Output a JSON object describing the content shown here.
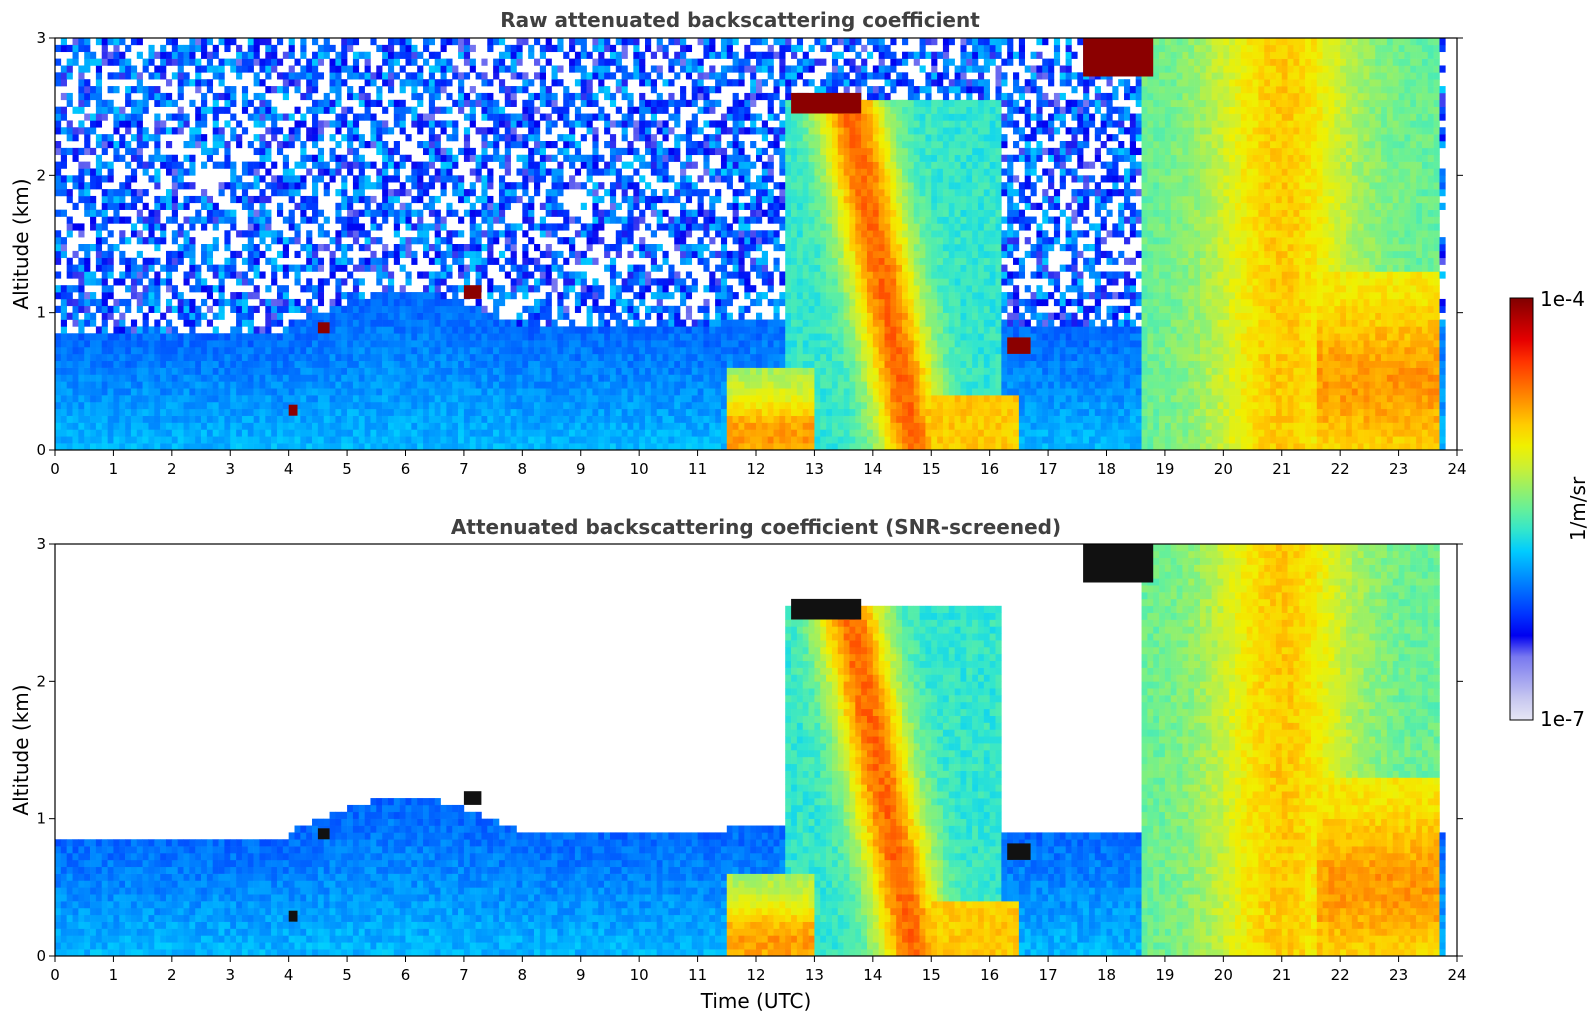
{
  "chart_data": [
    {
      "type": "heatmap",
      "title": "Raw attenuated backscattering coefficient",
      "xlabel": "",
      "ylabel": "Altitude (km)",
      "xlim": [
        0,
        24
      ],
      "ylim": [
        0,
        3
      ],
      "xticks": [
        "0",
        "1",
        "2",
        "3",
        "4",
        "5",
        "6",
        "7",
        "8",
        "9",
        "10",
        "11",
        "12",
        "13",
        "14",
        "15",
        "16",
        "17",
        "18",
        "19",
        "20",
        "21",
        "22",
        "23",
        "24"
      ],
      "yticks": [
        "0",
        "1",
        "2",
        "3"
      ],
      "screened": false,
      "cloud_segments": [
        {
          "t0": 12.6,
          "t1": 13.8,
          "z0": 2.45,
          "z1": 2.6
        },
        {
          "t0": 17.6,
          "t1": 18.8,
          "z0": 2.72,
          "z1": 3.0
        },
        {
          "t0": 16.3,
          "t1": 16.7,
          "z0": 0.7,
          "z1": 0.82
        },
        {
          "t0": 4.5,
          "t1": 4.7,
          "z0": 0.85,
          "z1": 0.93
        },
        {
          "t0": 4.0,
          "t1": 4.15,
          "z0": 0.25,
          "z1": 0.33
        },
        {
          "t0": 7.0,
          "t1": 7.3,
          "z0": 1.1,
          "z1": 1.2
        }
      ]
    },
    {
      "type": "heatmap",
      "title": "Attenuated backscattering coefficient (SNR-screened)",
      "xlabel": "Time (UTC)",
      "ylabel": "Altitude (km)",
      "xlim": [
        0,
        24
      ],
      "ylim": [
        0,
        3
      ],
      "xticks": [
        "0",
        "1",
        "2",
        "3",
        "4",
        "5",
        "6",
        "7",
        "8",
        "9",
        "10",
        "11",
        "12",
        "13",
        "14",
        "15",
        "16",
        "17",
        "18",
        "19",
        "20",
        "21",
        "22",
        "23",
        "24"
      ],
      "yticks": [
        "0",
        "1",
        "2",
        "3"
      ],
      "screened": true,
      "cloud_segments": [
        {
          "t0": 12.6,
          "t1": 13.8,
          "z0": 2.45,
          "z1": 2.6
        },
        {
          "t0": 17.6,
          "t1": 18.8,
          "z0": 2.72,
          "z1": 3.0
        },
        {
          "t0": 16.3,
          "t1": 16.7,
          "z0": 0.7,
          "z1": 0.82
        },
        {
          "t0": 4.5,
          "t1": 4.7,
          "z0": 0.85,
          "z1": 0.93
        },
        {
          "t0": 4.0,
          "t1": 4.15,
          "z0": 0.25,
          "z1": 0.33
        },
        {
          "t0": 7.0,
          "t1": 7.3,
          "z0": 1.1,
          "z1": 1.2
        }
      ]
    }
  ],
  "colorbar": {
    "label": "1/m/sr",
    "max_label": "1e-4",
    "min_label": "1e-7",
    "colors": [
      "#e6e6f5",
      "#c8c8f0",
      "#a0a0f0",
      "#7878f0",
      "#0000f0",
      "#0033ff",
      "#0066ff",
      "#0099ff",
      "#00ccff",
      "#33e6cc",
      "#66f099",
      "#99f066",
      "#ccf033",
      "#f0f000",
      "#ffcc00",
      "#ff9900",
      "#ff6600",
      "#ff3300",
      "#e60000",
      "#b40000",
      "#800000"
    ]
  }
}
